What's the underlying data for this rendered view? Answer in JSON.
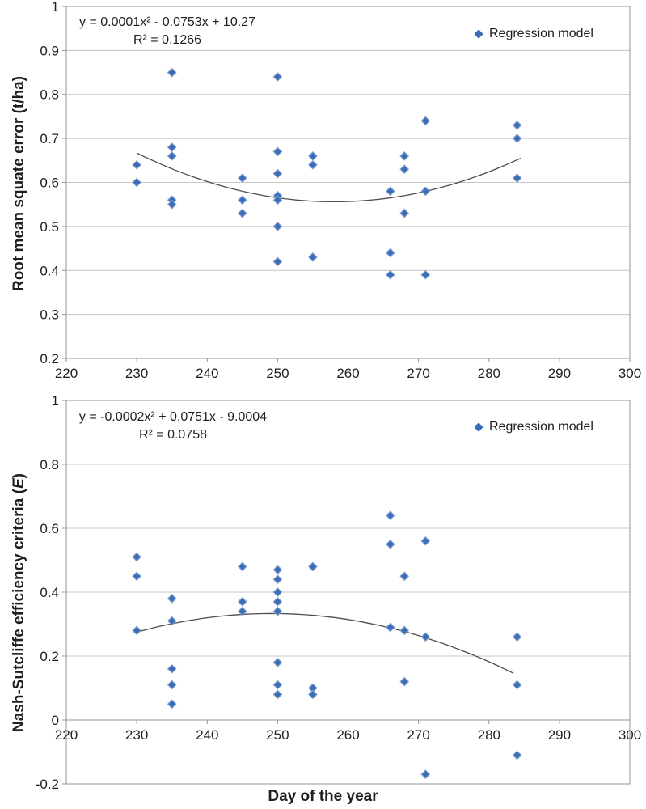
{
  "figure": {
    "marker_color": "#3A6DB5",
    "marker_edge": "#7E9CCF",
    "trend_color": "#4D4D4D",
    "grid_color": "#C5C5C5",
    "axis_color": "#969696",
    "text_color": "#1F1F1F",
    "xlabel": "Day of the year"
  },
  "chart_data": [
    {
      "type": "scatter",
      "title": "",
      "xlabel": "",
      "ylabel": "Root mean squate error (t/ha)",
      "equation": "y = 0.0001x² - 0.0753x + 10.27",
      "r_squared": "R² = 0.1266",
      "legend": "Regression model",
      "legend_position": "top-right",
      "grid": true,
      "xlim": [
        220,
        300
      ],
      "ylim": [
        0.2,
        1
      ],
      "x_ticks": [
        220,
        230,
        240,
        250,
        260,
        270,
        280,
        290,
        300
      ],
      "y_ticks": [
        1,
        0.9,
        0.8,
        0.7,
        0.6,
        0.5,
        0.4,
        0.3,
        0.2
      ],
      "y_tick_labels": [
        "1",
        "0.9",
        "0.8",
        "0.7",
        "0.6",
        "0.5",
        "0.4",
        "0.3",
        "0.2"
      ],
      "series": [
        {
          "name": "Regression model",
          "points": [
            [
              230,
              0.64
            ],
            [
              230,
              0.6
            ],
            [
              235,
              0.85
            ],
            [
              235,
              0.68
            ],
            [
              235,
              0.66
            ],
            [
              235,
              0.56
            ],
            [
              235,
              0.55
            ],
            [
              245,
              0.61
            ],
            [
              245,
              0.56
            ],
            [
              245,
              0.53
            ],
            [
              250,
              0.84
            ],
            [
              250,
              0.67
            ],
            [
              250,
              0.62
            ],
            [
              250,
              0.57
            ],
            [
              250,
              0.56
            ],
            [
              250,
              0.5
            ],
            [
              250,
              0.42
            ],
            [
              255,
              0.66
            ],
            [
              255,
              0.64
            ],
            [
              255,
              0.43
            ],
            [
              266,
              0.58
            ],
            [
              266,
              0.44
            ],
            [
              266,
              0.39
            ],
            [
              268,
              0.66
            ],
            [
              268,
              0.63
            ],
            [
              268,
              0.53
            ],
            [
              271,
              0.74
            ],
            [
              271,
              0.58
            ],
            [
              271,
              0.39
            ],
            [
              284,
              0.73
            ],
            [
              284,
              0.7
            ],
            [
              284,
              0.61
            ]
          ]
        }
      ],
      "trendline": {
        "type": "polynomial2",
        "anchors": [
          [
            230,
            0.667
          ],
          [
            258,
            0.556
          ],
          [
            284.5,
            0.655
          ]
        ]
      }
    },
    {
      "type": "scatter",
      "title": "",
      "xlabel": "Day of the year",
      "ylabel": "Nash-Sutcliffe efficiency criteria (E)",
      "ylabel_parts": {
        "prefix": "Nash-Sutcliffe efficiency criteria (",
        "italic": "E",
        "suffix": ")"
      },
      "equation": "y = -0.0002x² + 0.0751x - 9.0004",
      "r_squared": "R² = 0.0758",
      "legend": "Regression model",
      "legend_position": "top-right",
      "grid": true,
      "xlim": [
        220,
        300
      ],
      "ylim": [
        -0.2,
        1
      ],
      "axis_cross_y": 0,
      "x_ticks": [
        220,
        230,
        240,
        250,
        260,
        270,
        280,
        290,
        300
      ],
      "y_ticks": [
        1,
        0.8,
        0.6,
        0.4,
        0.2,
        0,
        -0.2
      ],
      "y_tick_labels": [
        "1",
        "0.8",
        "0.6",
        "0.4",
        "0.2",
        "0",
        "-0.2"
      ],
      "series": [
        {
          "name": "Regression model",
          "points": [
            [
              230,
              0.51
            ],
            [
              230,
              0.45
            ],
            [
              230,
              0.28
            ],
            [
              235,
              0.38
            ],
            [
              235,
              0.31
            ],
            [
              235,
              0.16
            ],
            [
              235,
              0.11
            ],
            [
              235,
              0.05
            ],
            [
              245,
              0.48
            ],
            [
              245,
              0.37
            ],
            [
              245,
              0.34
            ],
            [
              250,
              0.47
            ],
            [
              250,
              0.44
            ],
            [
              250,
              0.4
            ],
            [
              250,
              0.37
            ],
            [
              250,
              0.34
            ],
            [
              250,
              0.18
            ],
            [
              250,
              0.11
            ],
            [
              250,
              0.08
            ],
            [
              255,
              0.48
            ],
            [
              255,
              0.1
            ],
            [
              255,
              0.08
            ],
            [
              266,
              0.64
            ],
            [
              266,
              0.55
            ],
            [
              266,
              0.29
            ],
            [
              268,
              0.45
            ],
            [
              268,
              0.28
            ],
            [
              268,
              0.12
            ],
            [
              271,
              0.56
            ],
            [
              271,
              0.26
            ],
            [
              271,
              -0.17
            ],
            [
              284,
              0.26
            ],
            [
              284,
              0.11
            ],
            [
              284,
              -0.11
            ]
          ]
        }
      ],
      "trendline": {
        "type": "polynomial2",
        "anchors": [
          [
            230.5,
            0.278
          ],
          [
            250,
            0.333
          ],
          [
            283.5,
            0.146
          ]
        ]
      }
    }
  ]
}
